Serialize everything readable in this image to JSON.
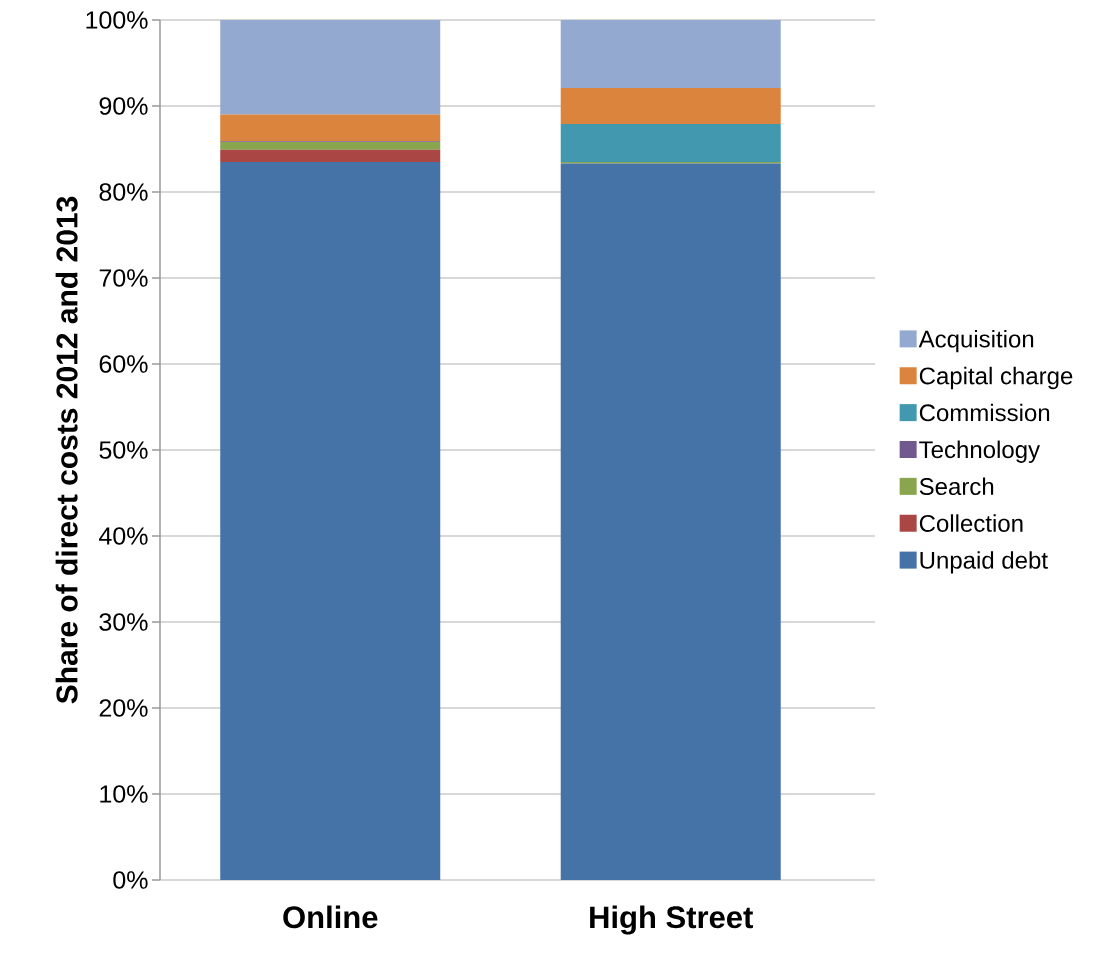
{
  "chart_data": {
    "type": "bar",
    "stacked": true,
    "ylabel": "Share of direct costs 2012 and 2013",
    "categories": [
      "Online",
      "High Street"
    ],
    "series": [
      {
        "name": "Unpaid debt",
        "color": "#4572a7",
        "values": [
          83.5,
          83.3
        ]
      },
      {
        "name": "Collection",
        "color": "#aa4643",
        "values": [
          1.4,
          0
        ]
      },
      {
        "name": "Search",
        "color": "#89a54e",
        "values": [
          0.9,
          0.2
        ]
      },
      {
        "name": "Technology",
        "color": "#71588f",
        "values": [
          0.1,
          0
        ]
      },
      {
        "name": "Commission",
        "color": "#4198af",
        "values": [
          0,
          4.4
        ]
      },
      {
        "name": "Capital charge",
        "color": "#db843d",
        "values": [
          3.1,
          4.2
        ]
      },
      {
        "name": "Acquisition",
        "color": "#93a9cf",
        "values": [
          11.0,
          7.9
        ]
      }
    ],
    "ylim": [
      0,
      100
    ],
    "yticks": [
      {
        "value": 0,
        "label": "0%"
      },
      {
        "value": 10,
        "label": "10%"
      },
      {
        "value": 20,
        "label": "20%"
      },
      {
        "value": 30,
        "label": "30%"
      },
      {
        "value": 40,
        "label": "40%"
      },
      {
        "value": 50,
        "label": "50%"
      },
      {
        "value": 60,
        "label": "60%"
      },
      {
        "value": 70,
        "label": "70%"
      },
      {
        "value": 80,
        "label": "80%"
      },
      {
        "value": 90,
        "label": "90%"
      },
      {
        "value": 100,
        "label": "100%"
      }
    ],
    "grid": "y",
    "legend": "right"
  }
}
